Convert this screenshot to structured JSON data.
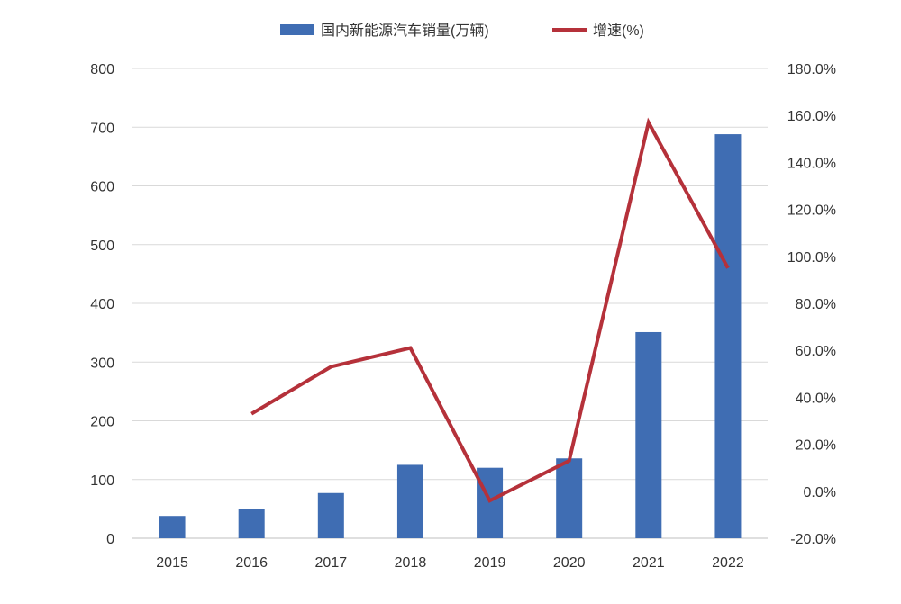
{
  "chart_data": {
    "type": "bar+line",
    "categories": [
      "2015",
      "2016",
      "2017",
      "2018",
      "2019",
      "2020",
      "2021",
      "2022"
    ],
    "series": [
      {
        "name": "国内新能源汽车销量(万辆)",
        "type": "bar",
        "axis": "left",
        "color": "#3f6db3",
        "values": [
          38,
          50,
          77,
          125,
          120,
          136,
          351,
          688
        ]
      },
      {
        "name": "增速(%)",
        "type": "line",
        "axis": "right",
        "color": "#b5313a",
        "values": [
          null,
          33,
          53,
          61,
          -4,
          13,
          157,
          95
        ]
      }
    ],
    "y_left": {
      "min": 0,
      "max": 800,
      "ticks": [
        "0",
        "100",
        "200",
        "300",
        "400",
        "500",
        "600",
        "700",
        "800"
      ]
    },
    "y_right": {
      "min": -20,
      "max": 180,
      "ticks": [
        "-20.0%",
        "0.0%",
        "20.0%",
        "40.0%",
        "60.0%",
        "80.0%",
        "100.0%",
        "120.0%",
        "140.0%",
        "160.0%",
        "180.0%"
      ]
    },
    "grid": true,
    "legend_position": "top-center"
  }
}
